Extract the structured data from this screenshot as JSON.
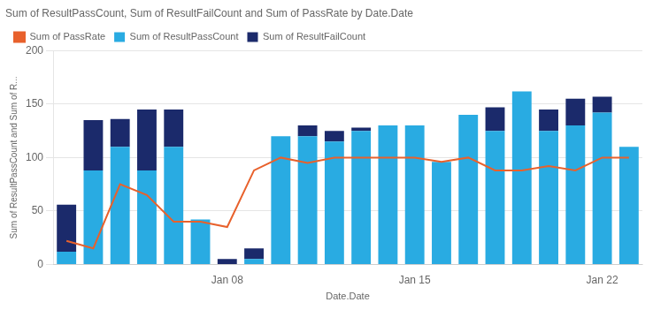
{
  "chart_data": {
    "type": "bar",
    "title": "Sum of ResultPassCount, Sum of ResultFailCount and Sum of PassRate by Date.Date",
    "xlabel": "Date.Date",
    "ylabel": "Sum of ResultPassCount and Sum of R...",
    "categories": [
      null,
      null,
      null,
      null,
      null,
      null,
      "Jan 08",
      null,
      null,
      null,
      null,
      null,
      null,
      "Jan 15",
      null,
      null,
      null,
      null,
      null,
      null,
      "Jan 22",
      null
    ],
    "stacked": true,
    "series": [
      {
        "name": "Sum of ResultPassCount",
        "color": "#29ABE2",
        "values": [
          12,
          88,
          110,
          88,
          110,
          42,
          0,
          5,
          120,
          120,
          115,
          125,
          130,
          130,
          96,
          140,
          125,
          162,
          125,
          130,
          142,
          110
        ]
      },
      {
        "name": "Sum of ResultFailCount",
        "color": "#1B2A6B",
        "values": [
          44,
          47,
          26,
          57,
          35,
          0,
          5,
          10,
          0,
          10,
          10,
          3,
          0,
          0,
          0,
          0,
          22,
          0,
          20,
          25,
          15,
          0
        ]
      },
      {
        "name": "Sum of PassRate",
        "type": "line",
        "color": "#E8612C",
        "values": [
          22,
          15,
          75,
          65,
          40,
          40,
          35,
          88,
          100,
          95,
          100,
          100,
          100,
          100,
          96,
          100,
          88,
          88,
          92,
          88,
          100,
          100
        ]
      }
    ],
    "ylim": [
      0,
      200
    ],
    "yticks": [
      0,
      50,
      100,
      150,
      200
    ],
    "grid": "y",
    "legend": "top left"
  }
}
